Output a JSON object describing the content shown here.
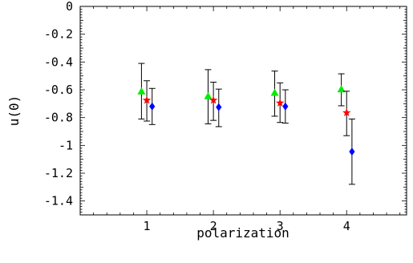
{
  "chart_data": {
    "type": "scatter",
    "xlabel": "polarization",
    "ylabel": "u(0)",
    "xlim": [
      0,
      4.9
    ],
    "ylim": [
      -1.5,
      0
    ],
    "x_ticks": [
      1,
      2,
      3,
      4
    ],
    "x_tick_labels": [
      "1",
      "2",
      "3",
      "4"
    ],
    "y_ticks": [
      0,
      -0.2,
      -0.4,
      -0.6,
      -0.8,
      -1,
      -1.2,
      -1.4
    ],
    "y_tick_labels": [
      "0",
      "-0.2",
      "-0.4",
      "-0.6",
      "-0.8",
      "-1",
      "-1.2",
      "-1.4"
    ],
    "grid": false,
    "frame": true,
    "series": [
      {
        "marker": "triangle",
        "color": "#00ee00",
        "points": [
          {
            "x": 0.92,
            "y": -0.61,
            "lo": -0.81,
            "hi": -0.41
          },
          {
            "x": 1.92,
            "y": -0.645,
            "lo": -0.845,
            "hi": -0.455
          },
          {
            "x": 2.92,
            "y": -0.62,
            "lo": -0.79,
            "hi": -0.465
          },
          {
            "x": 3.92,
            "y": -0.595,
            "lo": -0.715,
            "hi": -0.485
          }
        ]
      },
      {
        "marker": "star",
        "color": "#ff0000",
        "points": [
          {
            "x": 1.0,
            "y": -0.675,
            "lo": -0.825,
            "hi": -0.535
          },
          {
            "x": 2.0,
            "y": -0.675,
            "lo": -0.82,
            "hi": -0.545
          },
          {
            "x": 3.0,
            "y": -0.695,
            "lo": -0.835,
            "hi": -0.55
          },
          {
            "x": 4.0,
            "y": -0.765,
            "lo": -0.93,
            "hi": -0.61
          }
        ]
      },
      {
        "marker": "diamond",
        "color": "#0000ff",
        "points": [
          {
            "x": 1.08,
            "y": -0.72,
            "lo": -0.85,
            "hi": -0.59
          },
          {
            "x": 2.08,
            "y": -0.725,
            "lo": -0.865,
            "hi": -0.595
          },
          {
            "x": 3.08,
            "y": -0.72,
            "lo": -0.84,
            "hi": -0.6
          },
          {
            "x": 4.08,
            "y": -1.045,
            "lo": -1.28,
            "hi": -0.81
          }
        ]
      }
    ]
  }
}
